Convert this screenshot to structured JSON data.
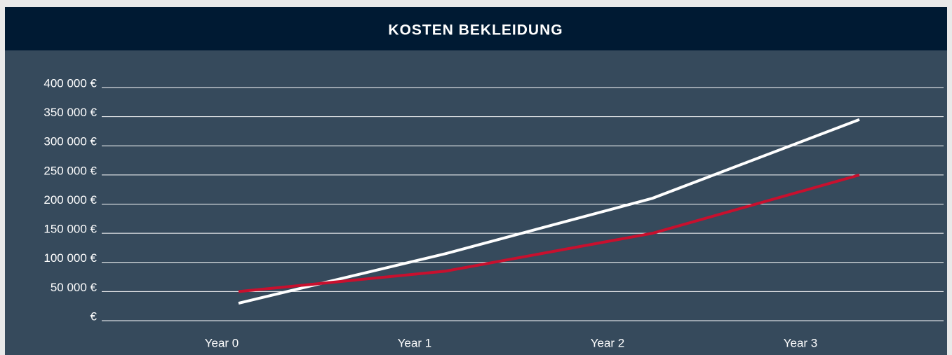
{
  "chart_data": {
    "type": "line",
    "title": "KOSTEN BEKLEIDUNG",
    "categories": [
      "Year 0",
      "Year 1",
      "Year 2",
      "Year 3"
    ],
    "series": [
      {
        "color": "#ffffff",
        "values": [
          30000,
          115000,
          210000,
          345000
        ]
      },
      {
        "color": "#c8102e",
        "values": [
          50000,
          85000,
          150000,
          250000
        ]
      }
    ],
    "ylim": [
      0,
      400000
    ],
    "yticks": [
      {
        "value": 0,
        "label": "€"
      },
      {
        "value": 50000,
        "label": "50 000 €"
      },
      {
        "value": 100000,
        "label": "100 000 €"
      },
      {
        "value": 150000,
        "label": "150 000 €"
      },
      {
        "value": 200000,
        "label": "200 000 €"
      },
      {
        "value": 250000,
        "label": "250 000 €"
      },
      {
        "value": 300000,
        "label": "300 000 €"
      },
      {
        "value": 350000,
        "label": "350 000 €"
      },
      {
        "value": 400000,
        "label": "400 000 €"
      }
    ],
    "grid": true
  }
}
